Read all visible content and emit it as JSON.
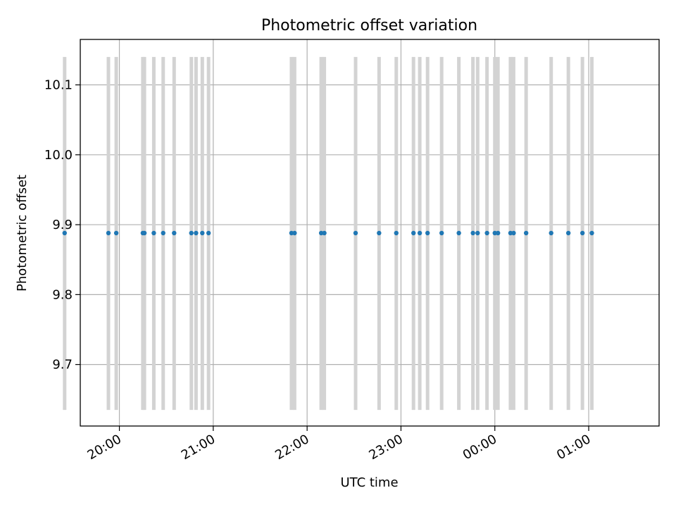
{
  "chart_data": {
    "type": "scatter",
    "title": "Photometric offset variation",
    "xlabel": "UTC time",
    "ylabel": "Photometric offset",
    "x_axis": {
      "kind": "time",
      "range": [
        "19:35",
        "01:45"
      ],
      "ticks": [
        "20:00",
        "21:00",
        "22:00",
        "23:00",
        "00:00",
        "01:00"
      ]
    },
    "y_axis": {
      "range": [
        9.612,
        10.165
      ],
      "ticks": [
        9.7,
        9.8,
        9.9,
        10.0,
        10.1
      ],
      "tick_labels": [
        "9.7",
        "9.8",
        "9.9",
        "10.0",
        "10.1"
      ]
    },
    "grid": true,
    "error_band": [
      9.635,
      10.14
    ],
    "series": [
      {
        "values": [
          {
            "x": "19:25",
            "y": 9.888
          },
          {
            "x": "19:53",
            "y": 9.888
          },
          {
            "x": "19:58",
            "y": 9.888
          },
          {
            "x": "20:15",
            "y": 9.888
          },
          {
            "x": "20:16",
            "y": 9.888
          },
          {
            "x": "20:22",
            "y": 9.888
          },
          {
            "x": "20:28",
            "y": 9.888
          },
          {
            "x": "20:35",
            "y": 9.888
          },
          {
            "x": "20:46",
            "y": 9.888
          },
          {
            "x": "20:49",
            "y": 9.888
          },
          {
            "x": "20:53",
            "y": 9.888
          },
          {
            "x": "20:57",
            "y": 9.888
          },
          {
            "x": "21:50",
            "y": 9.888
          },
          {
            "x": "21:52",
            "y": 9.888
          },
          {
            "x": "22:09",
            "y": 9.888
          },
          {
            "x": "22:11",
            "y": 9.888
          },
          {
            "x": "22:31",
            "y": 9.888
          },
          {
            "x": "22:46",
            "y": 9.888
          },
          {
            "x": "22:57",
            "y": 9.888
          },
          {
            "x": "23:08",
            "y": 9.888
          },
          {
            "x": "23:12",
            "y": 9.888
          },
          {
            "x": "23:17",
            "y": 9.888
          },
          {
            "x": "23:26",
            "y": 9.888
          },
          {
            "x": "23:37",
            "y": 9.888
          },
          {
            "x": "23:46",
            "y": 9.888
          },
          {
            "x": "23:49",
            "y": 9.888
          },
          {
            "x": "23:55",
            "y": 9.888
          },
          {
            "x": "00:00",
            "y": 9.888
          },
          {
            "x": "00:02",
            "y": 9.888
          },
          {
            "x": "00:10",
            "y": 9.888
          },
          {
            "x": "00:12",
            "y": 9.888
          },
          {
            "x": "00:20",
            "y": 9.888
          },
          {
            "x": "00:36",
            "y": 9.888
          },
          {
            "x": "00:47",
            "y": 9.888
          },
          {
            "x": "00:56",
            "y": 9.888
          },
          {
            "x": "01:02",
            "y": 9.888
          }
        ]
      }
    ],
    "colors": {
      "point": "#1f77b4",
      "error_bar": "#d3d3d3",
      "grid": "#b0b0b0",
      "axes": "#000000"
    }
  }
}
